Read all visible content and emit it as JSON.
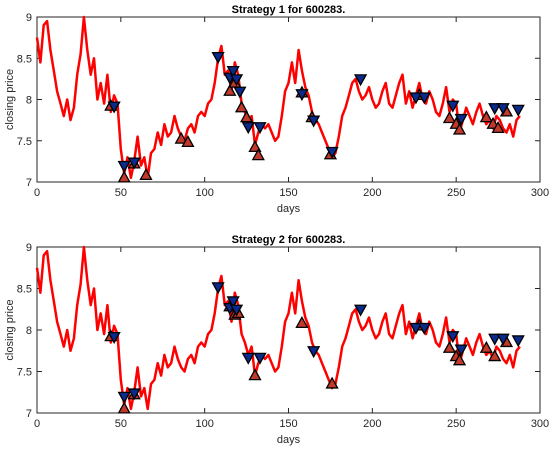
{
  "chart_data": [
    {
      "type": "line",
      "title": "Strategy 1 for 600283.",
      "xlabel": "days",
      "ylabel": "closing price",
      "xlim": [
        0,
        300
      ],
      "ylim": [
        7,
        9
      ],
      "xticks": [
        "0",
        "50",
        "100",
        "150",
        "200",
        "250",
        "300"
      ],
      "yticks": [
        "7",
        "7.5",
        "8",
        "8.5",
        "9"
      ],
      "grid": false,
      "colors": {
        "price": "#ff0000",
        "sell": "#0a2a8c",
        "buy": "#c0392b"
      },
      "series": [
        {
          "type": "line",
          "x": [
            0,
            2,
            4,
            6,
            8,
            10,
            12,
            14,
            16,
            18,
            20,
            22,
            24,
            26,
            28,
            30,
            32,
            34,
            36,
            38,
            40,
            42,
            44,
            46,
            48,
            50,
            52,
            54,
            56,
            58,
            60,
            62,
            64,
            66,
            68,
            70,
            72,
            74,
            76,
            78,
            80,
            82,
            84,
            86,
            88,
            90,
            92,
            94,
            96,
            98,
            100,
            102,
            104,
            106,
            108,
            110,
            112,
            114,
            116,
            118,
            120,
            122,
            124,
            126,
            128,
            130,
            132,
            134,
            136,
            138,
            140,
            142,
            144,
            146,
            148,
            150,
            152,
            154,
            156,
            158,
            160,
            162,
            164,
            166,
            168,
            170,
            172,
            174,
            176,
            178,
            180,
            182,
            184,
            186,
            188,
            190,
            192,
            194,
            196,
            198,
            200,
            202,
            204,
            206,
            208,
            210,
            212,
            214,
            216,
            218,
            220,
            222,
            224,
            226,
            228,
            230,
            232,
            234,
            236,
            238,
            240,
            242,
            244,
            246,
            248,
            250,
            252,
            254,
            256,
            258,
            260,
            262,
            264,
            266,
            268,
            270,
            272,
            274,
            276,
            278,
            280,
            282,
            284,
            286,
            288
          ],
          "y": [
            8.75,
            8.45,
            8.9,
            8.95,
            8.6,
            8.35,
            8.1,
            7.95,
            7.8,
            8.0,
            7.75,
            7.9,
            8.3,
            8.55,
            9.0,
            8.6,
            8.3,
            8.5,
            8.0,
            8.2,
            7.95,
            8.3,
            7.85,
            8.05,
            7.95,
            7.4,
            7.1,
            7.3,
            7.05,
            7.25,
            7.55,
            7.2,
            7.3,
            7.05,
            7.35,
            7.4,
            7.6,
            7.45,
            7.7,
            7.55,
            7.6,
            7.8,
            7.65,
            7.55,
            7.5,
            7.65,
            7.7,
            7.6,
            7.8,
            7.85,
            7.8,
            7.95,
            8.0,
            8.2,
            8.5,
            8.65,
            8.3,
            8.35,
            8.1,
            8.45,
            8.3,
            7.95,
            7.85,
            7.7,
            7.8,
            7.45,
            7.6,
            7.7,
            7.65,
            7.7,
            7.6,
            7.5,
            7.55,
            7.8,
            8.1,
            8.2,
            8.45,
            8.2,
            8.6,
            8.35,
            8.15,
            8.05,
            7.85,
            7.75,
            7.7,
            7.6,
            7.5,
            7.4,
            7.3,
            7.35,
            7.55,
            7.8,
            7.9,
            8.05,
            8.2,
            8.25,
            8.1,
            8.0,
            8.05,
            8.15,
            8.0,
            7.9,
            7.95,
            8.1,
            8.2,
            7.95,
            7.9,
            8.05,
            8.2,
            8.3,
            7.95,
            8.1,
            7.9,
            8.05,
            8.2,
            8.0,
            7.95,
            8.1,
            8.0,
            7.85,
            7.8,
            7.95,
            8.15,
            7.85,
            8.0,
            7.95,
            7.6,
            7.75,
            7.9,
            7.8,
            7.7,
            7.85,
            7.95,
            7.8,
            7.7,
            7.75,
            7.65,
            7.8,
            7.75,
            7.65,
            7.6,
            7.7,
            7.55,
            7.75,
            7.8
          ]
        }
      ],
      "sell_markers": [
        [
          46,
          7.92
        ],
        [
          52,
          7.2
        ],
        [
          58,
          7.24
        ],
        [
          108,
          8.52
        ],
        [
          115,
          8.27
        ],
        [
          117,
          8.35
        ],
        [
          119,
          8.25
        ],
        [
          121,
          8.1
        ],
        [
          126,
          7.67
        ],
        [
          133,
          7.67
        ],
        [
          158,
          8.07
        ],
        [
          165,
          7.75
        ],
        [
          176,
          7.37
        ],
        [
          193,
          8.25
        ],
        [
          226,
          8.03
        ],
        [
          231,
          8.03
        ],
        [
          248,
          7.93
        ],
        [
          253,
          7.77
        ],
        [
          273,
          7.9
        ],
        [
          278,
          7.9
        ],
        [
          287,
          7.88
        ]
      ],
      "buy_markers": [
        [
          44,
          7.92
        ],
        [
          52,
          7.05
        ],
        [
          58,
          7.22
        ],
        [
          65,
          7.08
        ],
        [
          86,
          7.52
        ],
        [
          90,
          7.48
        ],
        [
          115,
          8.1
        ],
        [
          118,
          8.2
        ],
        [
          122,
          7.9
        ],
        [
          125,
          7.78
        ],
        [
          130,
          7.42
        ],
        [
          132,
          7.32
        ],
        [
          158,
          8.08
        ],
        [
          164,
          7.78
        ],
        [
          175,
          7.33
        ],
        [
          228,
          8.05
        ],
        [
          246,
          7.77
        ],
        [
          250,
          7.7
        ],
        [
          252,
          7.63
        ],
        [
          268,
          7.78
        ],
        [
          272,
          7.7
        ],
        [
          275,
          7.65
        ],
        [
          280,
          7.85
        ]
      ]
    },
    {
      "type": "line",
      "title": "Strategy 2 for 600283.",
      "xlabel": "days",
      "ylabel": "closing price",
      "xlim": [
        0,
        300
      ],
      "ylim": [
        7,
        9
      ],
      "xticks": [
        "0",
        "50",
        "100",
        "150",
        "200",
        "250",
        "300"
      ],
      "yticks": [
        "7",
        "7.5",
        "8",
        "8.5",
        "9"
      ],
      "grid": false,
      "colors": {
        "price": "#ff0000",
        "sell": "#0a2a8c",
        "buy": "#c0392b"
      },
      "series": [
        {
          "type": "line",
          "x": [
            0,
            2,
            4,
            6,
            8,
            10,
            12,
            14,
            16,
            18,
            20,
            22,
            24,
            26,
            28,
            30,
            32,
            34,
            36,
            38,
            40,
            42,
            44,
            46,
            48,
            50,
            52,
            54,
            56,
            58,
            60,
            62,
            64,
            66,
            68,
            70,
            72,
            74,
            76,
            78,
            80,
            82,
            84,
            86,
            88,
            90,
            92,
            94,
            96,
            98,
            100,
            102,
            104,
            106,
            108,
            110,
            112,
            114,
            116,
            118,
            120,
            122,
            124,
            126,
            128,
            130,
            132,
            134,
            136,
            138,
            140,
            142,
            144,
            146,
            148,
            150,
            152,
            154,
            156,
            158,
            160,
            162,
            164,
            166,
            168,
            170,
            172,
            174,
            176,
            178,
            180,
            182,
            184,
            186,
            188,
            190,
            192,
            194,
            196,
            198,
            200,
            202,
            204,
            206,
            208,
            210,
            212,
            214,
            216,
            218,
            220,
            222,
            224,
            226,
            228,
            230,
            232,
            234,
            236,
            238,
            240,
            242,
            244,
            246,
            248,
            250,
            252,
            254,
            256,
            258,
            260,
            262,
            264,
            266,
            268,
            270,
            272,
            274,
            276,
            278,
            280,
            282,
            284,
            286,
            288
          ],
          "y": [
            8.75,
            8.45,
            8.9,
            8.95,
            8.6,
            8.35,
            8.1,
            7.95,
            7.8,
            8.0,
            7.75,
            7.9,
            8.3,
            8.55,
            9.0,
            8.6,
            8.3,
            8.5,
            8.0,
            8.2,
            7.95,
            8.3,
            7.85,
            8.05,
            7.95,
            7.4,
            7.1,
            7.3,
            7.05,
            7.25,
            7.55,
            7.2,
            7.3,
            7.05,
            7.35,
            7.4,
            7.6,
            7.45,
            7.7,
            7.55,
            7.6,
            7.8,
            7.65,
            7.55,
            7.5,
            7.65,
            7.7,
            7.6,
            7.8,
            7.85,
            7.8,
            7.95,
            8.0,
            8.2,
            8.5,
            8.65,
            8.3,
            8.35,
            8.1,
            8.45,
            8.3,
            7.95,
            7.85,
            7.7,
            7.8,
            7.45,
            7.6,
            7.7,
            7.65,
            7.7,
            7.6,
            7.5,
            7.55,
            7.8,
            8.1,
            8.2,
            8.45,
            8.2,
            8.6,
            8.35,
            8.15,
            8.05,
            7.85,
            7.75,
            7.7,
            7.6,
            7.5,
            7.4,
            7.3,
            7.35,
            7.55,
            7.8,
            7.9,
            8.05,
            8.2,
            8.25,
            8.1,
            8.0,
            8.05,
            8.15,
            8.0,
            7.9,
            7.95,
            8.1,
            8.2,
            7.95,
            7.9,
            8.05,
            8.2,
            8.3,
            7.95,
            8.1,
            7.9,
            8.05,
            8.2,
            8.0,
            7.95,
            8.1,
            8.0,
            7.85,
            7.8,
            7.95,
            8.15,
            7.85,
            8.0,
            7.95,
            7.6,
            7.75,
            7.9,
            7.8,
            7.7,
            7.85,
            7.95,
            7.8,
            7.7,
            7.75,
            7.65,
            7.8,
            7.75,
            7.65,
            7.6,
            7.7,
            7.55,
            7.75,
            7.8
          ]
        }
      ],
      "sell_markers": [
        [
          46,
          7.92
        ],
        [
          52,
          7.2
        ],
        [
          58,
          7.24
        ],
        [
          108,
          8.52
        ],
        [
          115,
          8.27
        ],
        [
          117,
          8.35
        ],
        [
          119,
          8.25
        ],
        [
          126,
          7.67
        ],
        [
          133,
          7.67
        ],
        [
          165,
          7.75
        ],
        [
          193,
          8.25
        ],
        [
          226,
          8.03
        ],
        [
          231,
          8.03
        ],
        [
          248,
          7.93
        ],
        [
          253,
          7.77
        ],
        [
          273,
          7.9
        ],
        [
          278,
          7.9
        ],
        [
          287,
          7.88
        ]
      ],
      "buy_markers": [
        [
          44,
          7.92
        ],
        [
          52,
          7.05
        ],
        [
          58,
          7.22
        ],
        [
          115,
          8.28
        ],
        [
          118,
          8.18
        ],
        [
          120,
          8.2
        ],
        [
          130,
          7.45
        ],
        [
          158,
          8.08
        ],
        [
          176,
          7.35
        ],
        [
          228,
          8.05
        ],
        [
          246,
          7.78
        ],
        [
          250,
          7.68
        ],
        [
          252,
          7.63
        ],
        [
          268,
          7.78
        ],
        [
          273,
          7.68
        ],
        [
          280,
          7.85
        ]
      ]
    }
  ]
}
